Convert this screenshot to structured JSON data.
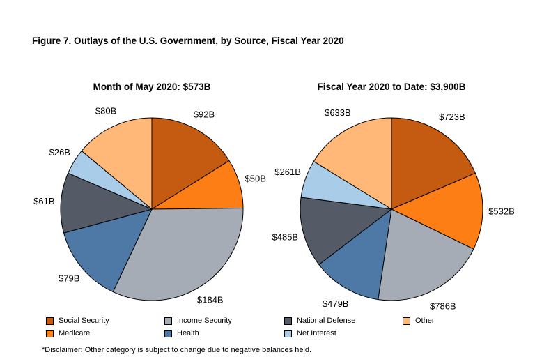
{
  "figure_title": "Figure 7. Outlays of the U.S. Government, by Source, Fiscal Year 2020",
  "colors": {
    "Social Security": "#c55a11",
    "Medicare": "#fd7e14",
    "Income Security": "#a5acb6",
    "Health": "#4e79a7",
    "National Defense": "#545a66",
    "Net Interest": "#a9cce8",
    "Other": "#ffb878"
  },
  "legend": {
    "col1": [
      "Social Security",
      "Medicare"
    ],
    "col2": [
      "Income Security",
      "Health"
    ],
    "col3": [
      "National Defense",
      "Net Interest"
    ],
    "col4": [
      "Other"
    ]
  },
  "disclaimer": "*Disclaimer: Other category is subject to change due to negative balances held.",
  "chart_data": [
    {
      "type": "pie",
      "title": "Month of May 2020: $573B",
      "categories": [
        "Social Security",
        "Medicare",
        "Income Security",
        "Health",
        "National Defense",
        "Net Interest",
        "Other"
      ],
      "values": [
        92,
        50,
        184,
        79,
        61,
        26,
        80
      ],
      "labels": [
        "$92B",
        "$50B",
        "$184B",
        "$79B",
        "$61B",
        "$26B",
        "$80B"
      ]
    },
    {
      "type": "pie",
      "title": "Fiscal Year 2020 to Date: $3,900B",
      "categories": [
        "Social Security",
        "Medicare",
        "Income Security",
        "Health",
        "National Defense",
        "Net Interest",
        "Other"
      ],
      "values": [
        723,
        532,
        786,
        479,
        485,
        261,
        633
      ],
      "labels": [
        "$723B",
        "$532B",
        "$786B",
        "$479B",
        "$485B",
        "$261B",
        "$633B"
      ]
    }
  ]
}
